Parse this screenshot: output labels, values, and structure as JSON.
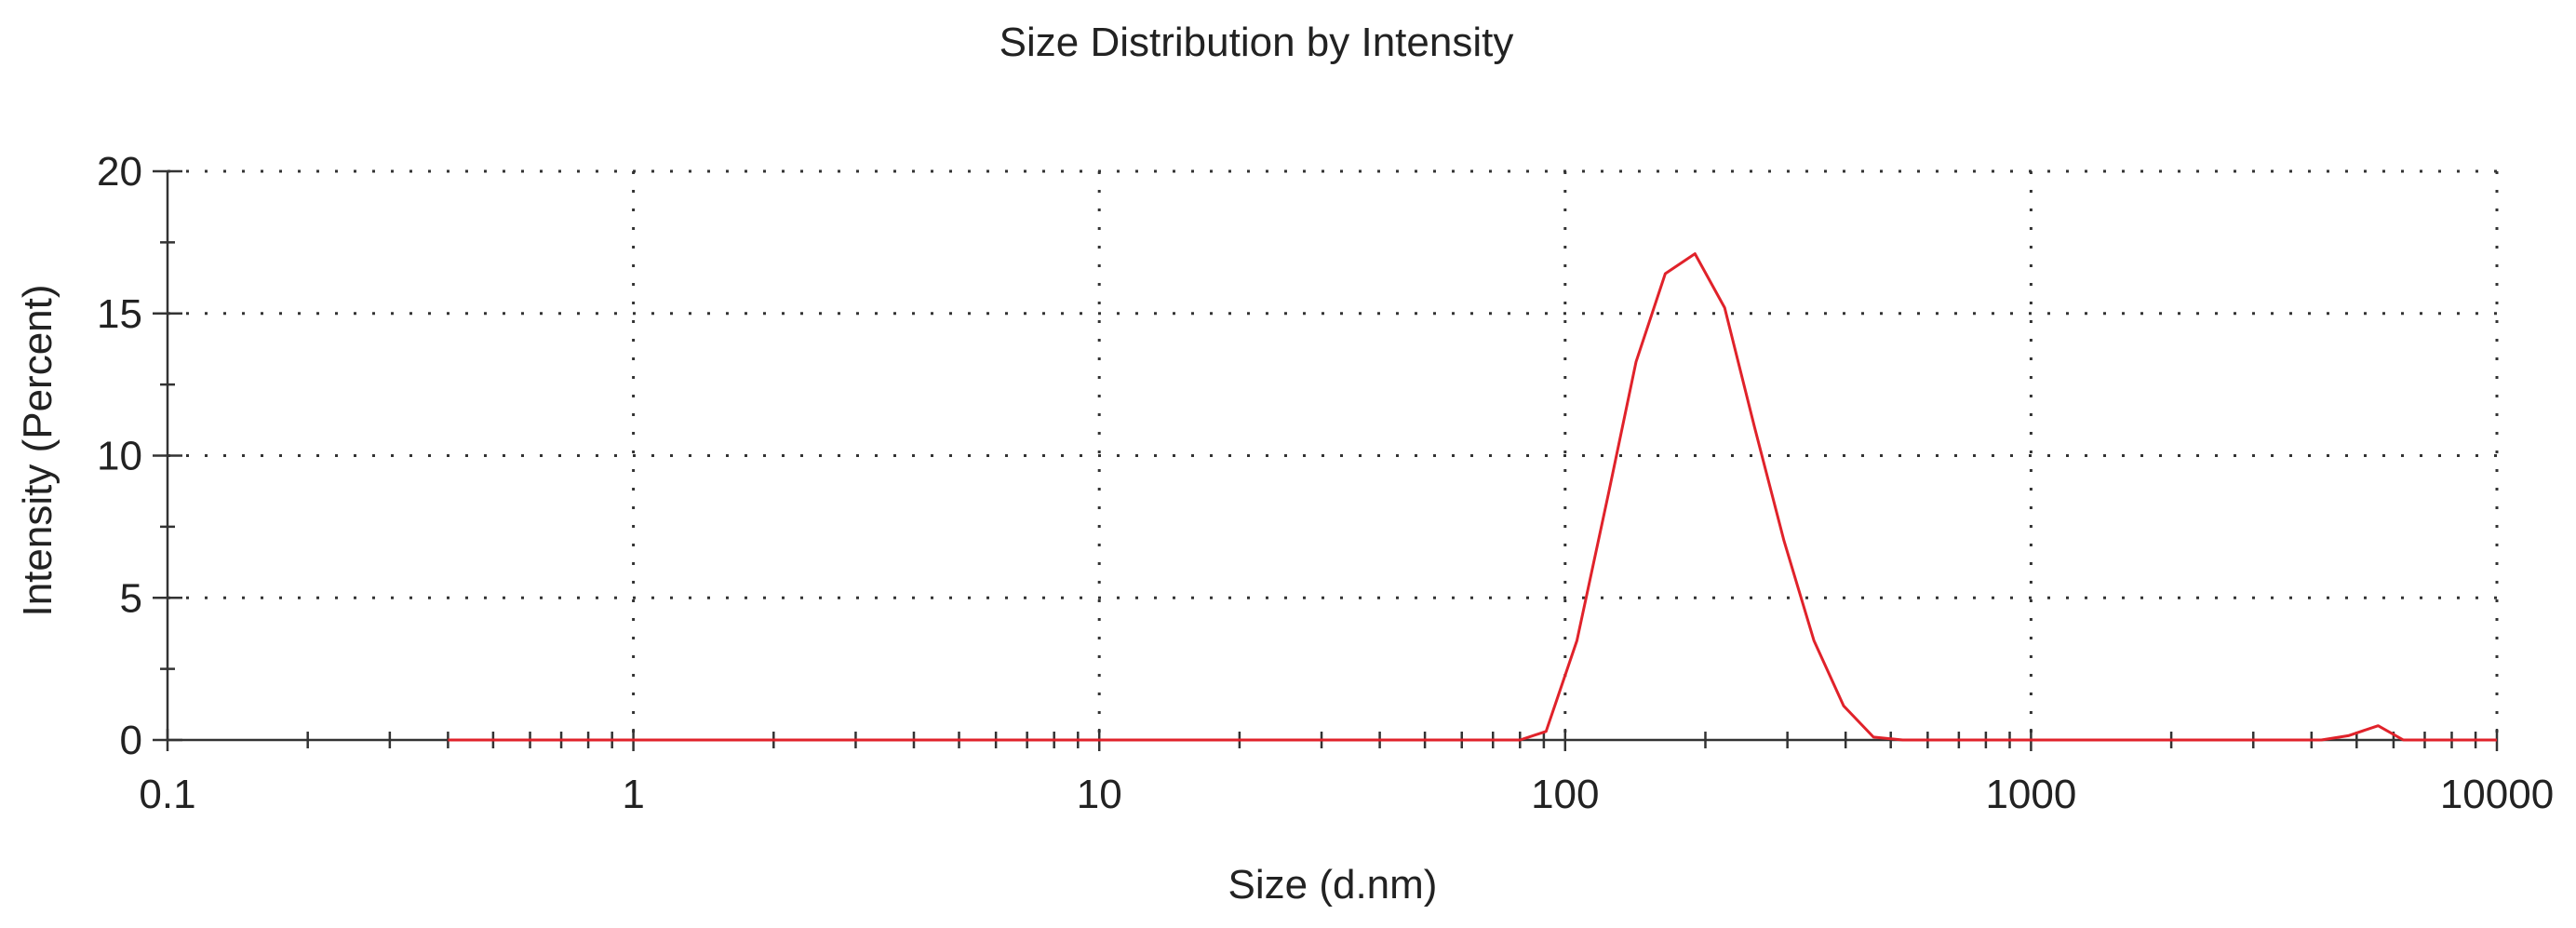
{
  "chart_data": {
    "type": "line",
    "title": "Size Distribution by Intensity",
    "xlabel": "Size (d.nm)",
    "ylabel": "Intensity (Percent)",
    "xscale": "log",
    "xlim": [
      0.1,
      10000
    ],
    "ylim": [
      0,
      20
    ],
    "x_ticks": [
      {
        "value": 0.1,
        "label": "0.1"
      },
      {
        "value": 1,
        "label": "1"
      },
      {
        "value": 10,
        "label": "10"
      },
      {
        "value": 100,
        "label": "100"
      },
      {
        "value": 1000,
        "label": "1000"
      },
      {
        "value": 10000,
        "label": "10000"
      }
    ],
    "y_ticks": [
      {
        "value": 0,
        "label": "0"
      },
      {
        "value": 5,
        "label": "5"
      },
      {
        "value": 10,
        "label": "10"
      },
      {
        "value": 15,
        "label": "15"
      },
      {
        "value": 20,
        "label": "20"
      }
    ],
    "grid": true,
    "legend": "none",
    "series": [
      {
        "color": "#e0222a",
        "x": [
          0.4,
          1,
          10,
          50,
          80,
          91,
          106,
          124,
          142,
          164,
          190,
          220,
          255,
          295,
          342,
          396,
          459,
          530,
          1000,
          3000,
          4200,
          4800,
          5560,
          6300,
          7000,
          8000,
          10000
        ],
        "y": [
          0,
          0,
          0,
          0,
          0,
          0.3,
          3.5,
          8.7,
          13.3,
          16.4,
          17.1,
          15.2,
          11.0,
          7.0,
          3.5,
          1.2,
          0.1,
          0,
          0,
          0,
          0,
          0.15,
          0.5,
          0,
          0,
          0,
          0
        ]
      }
    ]
  }
}
